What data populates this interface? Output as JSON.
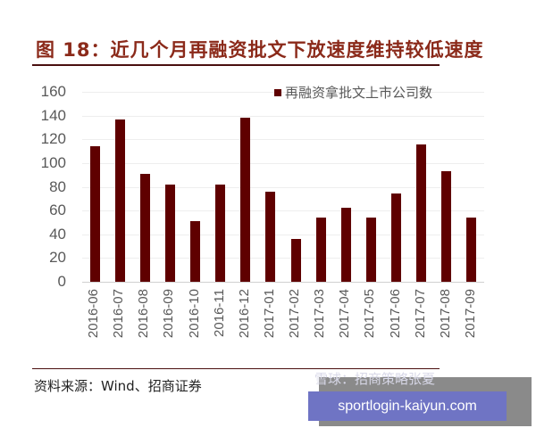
{
  "header": {
    "title": "图 18：近几个月再融资批文下放速度维持较低速度"
  },
  "legend": {
    "label": "再融资拿批文上市公司数",
    "color": "#5f0000"
  },
  "yaxis": {
    "ticks": [
      "160",
      "140",
      "120",
      "100",
      "80",
      "60",
      "40",
      "20",
      "0"
    ]
  },
  "footer": {
    "source": "资料来源：Wind、招商证券",
    "watermark_text": "雪球：招商策略张夏",
    "watermark_url": "sportlogin-kaiyun.com"
  },
  "chart_data": {
    "type": "bar",
    "title": "图 18：近几个月再融资批文下放速度维持较低速度",
    "xlabel": "",
    "ylabel": "",
    "ylim": [
      0,
      160
    ],
    "yticks": [
      0,
      20,
      40,
      60,
      80,
      100,
      120,
      140,
      160
    ],
    "grid": true,
    "legend_position": "top-right",
    "categories": [
      "2016-06",
      "2016-07",
      "2016-08",
      "2016-09",
      "2016-10",
      "2016-11",
      "2016-12",
      "2017-01",
      "2017-02",
      "2017-03",
      "2017-04",
      "2017-05",
      "2017-06",
      "2017-07",
      "2017-08",
      "2017-09"
    ],
    "series": [
      {
        "name": "再融资拿批文上市公司数",
        "color": "#5f0000",
        "values": [
          114,
          137,
          91,
          82,
          51,
          82,
          138,
          76,
          36,
          54,
          62,
          54,
          74,
          116,
          93,
          54
        ]
      }
    ],
    "source": "资料来源：Wind、招商证券"
  }
}
